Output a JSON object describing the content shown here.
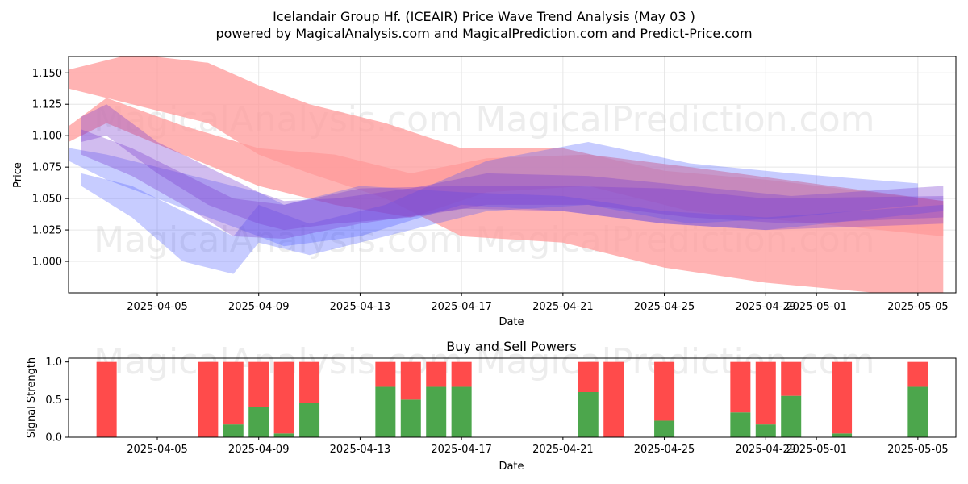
{
  "header": {
    "title_line1": "Icelandair Group Hf. (ICEAIR) Price Wave Trend Analysis (May 03 )",
    "title_line2": "powered by MagicalAnalysis.com and MagicalPrediction.com and Predict-Price.com"
  },
  "watermarks": [
    "MagicalAnalysis.com",
    "MagicalPrediction.com"
  ],
  "colors": {
    "sell": "#ff4b4b",
    "buy": "#4ca64c",
    "blue_band": "#4455ff",
    "purple_band": "#7a3fd0",
    "red_band": "#ff9a9a"
  },
  "chart_data": [
    {
      "type": "area",
      "title": "",
      "xlabel": "Date",
      "ylabel": "Price",
      "xlim": [
        "2025-04-01 12:00",
        "2025-05-06 12:00"
      ],
      "ylim": [
        0.975,
        1.163
      ],
      "x_ticks": [
        "2025-04-05",
        "2025-04-09",
        "2025-04-13",
        "2025-04-17",
        "2025-04-21",
        "2025-04-25",
        "2025-04-29",
        "2025-05-01",
        "2025-05-05"
      ],
      "y_ticks": [
        "1.000",
        "1.025",
        "1.050",
        "1.075",
        "1.100",
        "1.125",
        "1.150"
      ],
      "series": [
        {
          "name": "red-band-1",
          "color": "red",
          "x": [
            "2025-04-01",
            "2025-04-04",
            "2025-04-07",
            "2025-04-09",
            "2025-04-11",
            "2025-04-14",
            "2025-04-17",
            "2025-04-21",
            "2025-04-25",
            "2025-04-29",
            "2025-05-06"
          ],
          "upper": [
            1.15,
            1.165,
            1.158,
            1.14,
            1.125,
            1.11,
            1.09,
            1.09,
            1.072,
            1.065,
            1.048
          ],
          "lower": [
            1.14,
            1.125,
            1.11,
            1.085,
            1.07,
            1.05,
            1.02,
            1.015,
            0.995,
            0.983,
            0.97
          ]
        },
        {
          "name": "red-band-2",
          "color": "red",
          "x": [
            "2025-04-01",
            "2025-04-03",
            "2025-04-06",
            "2025-04-09",
            "2025-04-12",
            "2025-04-15",
            "2025-04-18",
            "2025-04-22",
            "2025-04-26",
            "2025-05-06"
          ],
          "upper": [
            1.1,
            1.13,
            1.108,
            1.09,
            1.085,
            1.07,
            1.082,
            1.085,
            1.075,
            1.048
          ],
          "lower": [
            1.09,
            1.11,
            1.085,
            1.06,
            1.045,
            1.035,
            1.055,
            1.06,
            1.04,
            1.02
          ]
        },
        {
          "name": "blue-band-1",
          "color": "blue",
          "x": [
            "2025-04-01",
            "2025-04-03",
            "2025-04-05",
            "2025-04-07",
            "2025-04-09",
            "2025-04-10",
            "2025-04-13",
            "2025-04-17",
            "2025-04-21",
            "2025-04-25",
            "2025-04-29",
            "2025-05-06"
          ],
          "upper": [
            1.092,
            1.085,
            1.075,
            1.065,
            1.055,
            1.045,
            1.06,
            1.055,
            1.052,
            1.04,
            1.035,
            1.045
          ],
          "lower": [
            1.085,
            1.065,
            1.05,
            1.035,
            1.02,
            1.012,
            1.02,
            1.045,
            1.04,
            1.03,
            1.025,
            1.04
          ]
        },
        {
          "name": "blue-band-2",
          "color": "blue",
          "x": [
            "2025-04-02",
            "2025-04-04",
            "2025-04-06",
            "2025-04-08",
            "2025-04-09",
            "2025-04-11",
            "2025-04-14",
            "2025-04-18",
            "2025-04-22",
            "2025-04-26",
            "2025-04-30",
            "2025-05-05"
          ],
          "upper": [
            1.07,
            1.06,
            1.04,
            1.02,
            1.045,
            1.03,
            1.045,
            1.08,
            1.095,
            1.078,
            1.07,
            1.062
          ],
          "lower": [
            1.06,
            1.035,
            1.0,
            0.99,
            1.015,
            1.005,
            1.02,
            1.04,
            1.045,
            1.03,
            1.035,
            1.045
          ]
        },
        {
          "name": "purple-band-1",
          "color": "purple",
          "x": [
            "2025-04-02",
            "2025-04-03",
            "2025-04-05",
            "2025-04-07",
            "2025-04-09",
            "2025-04-10",
            "2025-04-12",
            "2025-04-15",
            "2025-04-18",
            "2025-04-22",
            "2025-04-26",
            "2025-04-30",
            "2025-05-06"
          ],
          "upper": [
            1.115,
            1.125,
            1.095,
            1.075,
            1.055,
            1.048,
            1.05,
            1.058,
            1.07,
            1.068,
            1.06,
            1.052,
            1.06
          ],
          "lower": [
            1.095,
            1.1,
            1.07,
            1.045,
            1.03,
            1.025,
            1.03,
            1.035,
            1.045,
            1.045,
            1.035,
            1.03,
            1.035
          ]
        },
        {
          "name": "purple-band-2",
          "color": "purple",
          "x": [
            "2025-04-02",
            "2025-04-04",
            "2025-04-06",
            "2025-04-08",
            "2025-04-10",
            "2025-04-13",
            "2025-04-17",
            "2025-04-21",
            "2025-04-25",
            "2025-04-29",
            "2025-05-06"
          ],
          "upper": [
            1.105,
            1.09,
            1.07,
            1.05,
            1.045,
            1.058,
            1.06,
            1.06,
            1.058,
            1.05,
            1.052
          ],
          "lower": [
            1.085,
            1.068,
            1.045,
            1.02,
            1.018,
            1.03,
            1.042,
            1.04,
            1.03,
            1.025,
            1.03
          ]
        }
      ]
    },
    {
      "type": "bar",
      "title": "Buy and Sell Powers",
      "xlabel": "Date",
      "ylabel": "Signal Strength",
      "ylim": [
        0,
        1.05
      ],
      "y_ticks": [
        "0.0",
        "0.5",
        "1.0"
      ],
      "x_ticks": [
        "2025-04-05",
        "2025-04-09",
        "2025-04-13",
        "2025-04-17",
        "2025-04-21",
        "2025-04-25",
        "2025-04-29",
        "2025-05-01",
        "2025-05-05"
      ],
      "categories": [
        "2025-04-03",
        "2025-04-07",
        "2025-04-08",
        "2025-04-09",
        "2025-04-10",
        "2025-04-11",
        "2025-04-14",
        "2025-04-15",
        "2025-04-16",
        "2025-04-17",
        "2025-04-22",
        "2025-04-23",
        "2025-04-25",
        "2025-04-28",
        "2025-04-29",
        "2025-04-30",
        "2025-05-02",
        "2025-05-05"
      ],
      "series": [
        {
          "name": "Buy",
          "values": [
            0.0,
            0.0,
            0.17,
            0.4,
            0.05,
            0.45,
            0.67,
            0.5,
            0.67,
            0.67,
            0.6,
            0.0,
            0.22,
            0.33,
            0.17,
            0.55,
            0.05,
            0.67
          ]
        },
        {
          "name": "Sell",
          "values": [
            1.0,
            1.0,
            0.83,
            0.6,
            0.95,
            0.55,
            0.33,
            0.5,
            0.33,
            0.33,
            0.4,
            1.0,
            0.78,
            0.67,
            0.83,
            0.45,
            0.95,
            0.33
          ]
        }
      ]
    }
  ]
}
